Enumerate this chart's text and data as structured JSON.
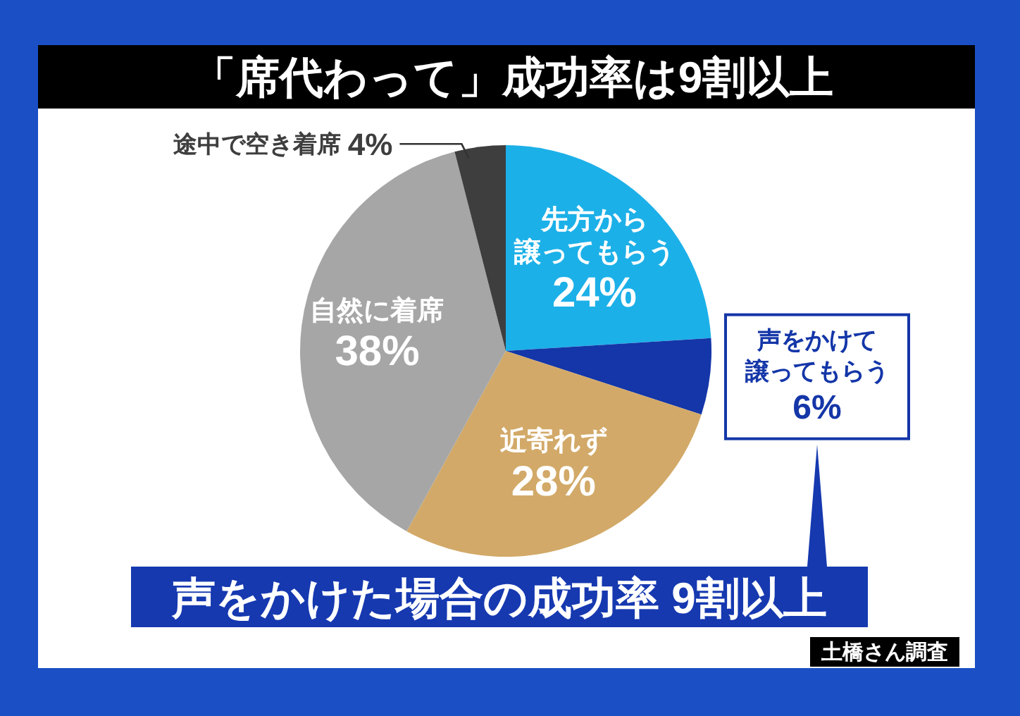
{
  "chart_data": {
    "type": "pie",
    "title": "「席代わって」成功率は9割以上",
    "categories": [
      "先方から譲ってもらう",
      "声をかけて譲ってもらう",
      "近寄れず",
      "自然に着席",
      "途中で空き着席"
    ],
    "values": [
      24,
      6,
      28,
      38,
      4
    ],
    "colors": [
      "#1cb0e8",
      "#1436a8",
      "#d2a968",
      "#a6a6a6",
      "#3e3e3e"
    ],
    "value_labels": [
      "24%",
      "6%",
      "28%",
      "38%",
      "4%"
    ],
    "annotations": [
      "声をかけた場合の成功率 9割以上",
      "土橋さん調査"
    ]
  }
}
